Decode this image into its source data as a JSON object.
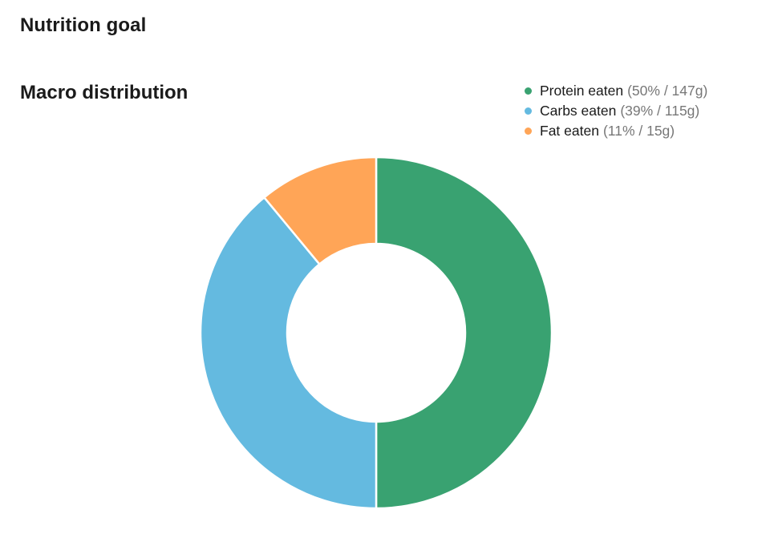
{
  "header": {
    "title": "Nutrition goal"
  },
  "section": {
    "title": "Macro distribution"
  },
  "chart_data": {
    "type": "pie",
    "variant": "donut",
    "title": "Macro distribution",
    "legend_position": "top-right",
    "slices": [
      {
        "label": "Protein eaten",
        "percent": 50,
        "grams": 147,
        "detail": "(50% / 147g)",
        "color": "#39a271"
      },
      {
        "label": "Carbs eaten",
        "percent": 39,
        "grams": 115,
        "detail": "(39% / 115g)",
        "color": "#64bae0"
      },
      {
        "label": "Fat eaten",
        "percent": 11,
        "grams": 15,
        "detail": "(11% / 15g)",
        "color": "#ffa557"
      }
    ]
  }
}
